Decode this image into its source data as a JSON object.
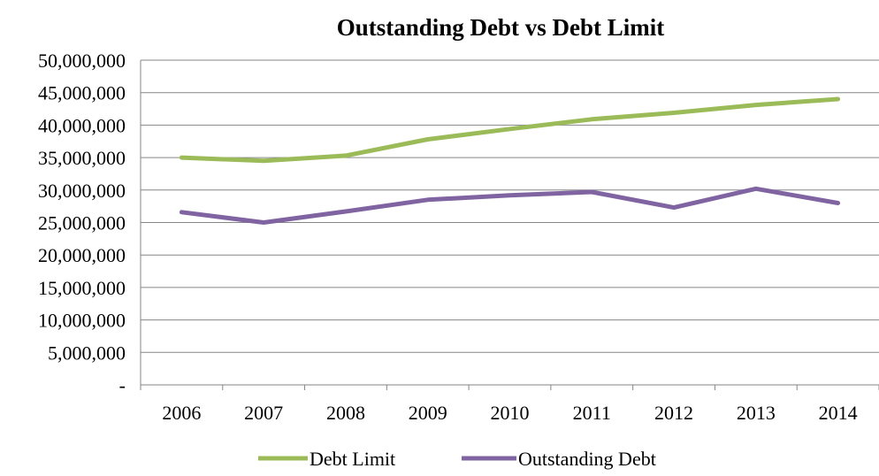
{
  "chart_data": {
    "type": "line",
    "title": "Outstanding Debt vs Debt Limit",
    "xlabel": "",
    "ylabel": "",
    "categories": [
      "2006",
      "2007",
      "2008",
      "2009",
      "2010",
      "2011",
      "2012",
      "2013",
      "2014"
    ],
    "ylim": [
      0,
      50000000
    ],
    "yticks": [
      0,
      5000000,
      10000000,
      15000000,
      20000000,
      25000000,
      30000000,
      35000000,
      40000000,
      45000000,
      50000000
    ],
    "ytick_labels": [
      "-",
      "5,000,000",
      "10,000,000",
      "15,000,000",
      "20,000,000",
      "25,000,000",
      "30,000,000",
      "35,000,000",
      "40,000,000",
      "45,000,000",
      "50,000,000"
    ],
    "grid": true,
    "legend_position": "bottom",
    "series": [
      {
        "name": "Debt Limit",
        "color": "#9BBB59",
        "values": [
          35000000,
          34500000,
          35300000,
          37800000,
          39400000,
          40900000,
          41900000,
          43100000,
          44000000
        ]
      },
      {
        "name": "Outstanding Debt",
        "color": "#8064A2",
        "values": [
          26600000,
          25000000,
          26700000,
          28500000,
          29200000,
          29700000,
          27300000,
          30200000,
          28000000
        ]
      }
    ]
  }
}
